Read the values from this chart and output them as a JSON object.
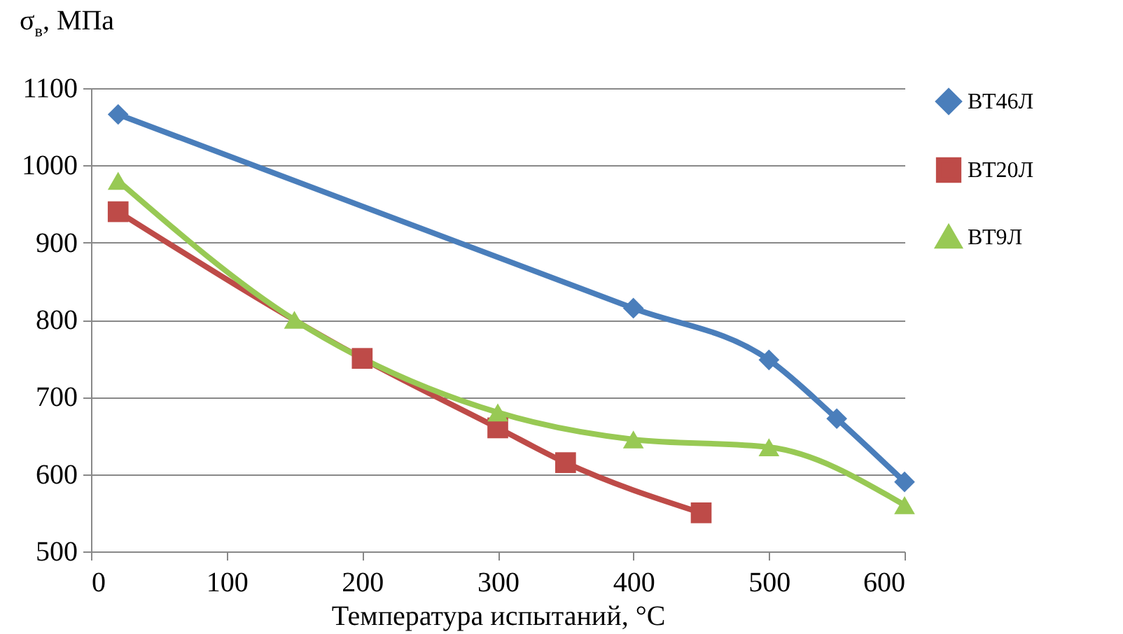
{
  "chart_data": {
    "type": "line",
    "xlabel": "Температура испытаний, °C",
    "ylabel": "σ$_{в}$, МПа",
    "xlim": [
      0,
      600
    ],
    "xticks": [
      0,
      100,
      200,
      300,
      400,
      500,
      600
    ],
    "ylim": [
      500,
      1100
    ],
    "yticks": [
      500,
      600,
      700,
      800,
      900,
      1000,
      1100
    ],
    "grid": "y",
    "legend": "right",
    "series": [
      {
        "name": "ВТ46Л",
        "color": "#4a7ebb",
        "marker": "diamond",
        "x": [
          20,
          400,
          500,
          550,
          600
        ],
        "values": [
          1066,
          815,
          748,
          672,
          590
        ]
      },
      {
        "name": "ВТ20Л",
        "color": "#be4b48",
        "marker": "square",
        "x": [
          20,
          200,
          300,
          350,
          450
        ],
        "values": [
          940,
          750,
          660,
          615,
          550
        ]
      },
      {
        "name": "ВТ9Л",
        "color": "#98c954",
        "marker": "triangle",
        "x": [
          20,
          150,
          300,
          400,
          500,
          600
        ],
        "values": [
          980,
          800,
          680,
          645,
          635,
          560
        ]
      }
    ]
  }
}
